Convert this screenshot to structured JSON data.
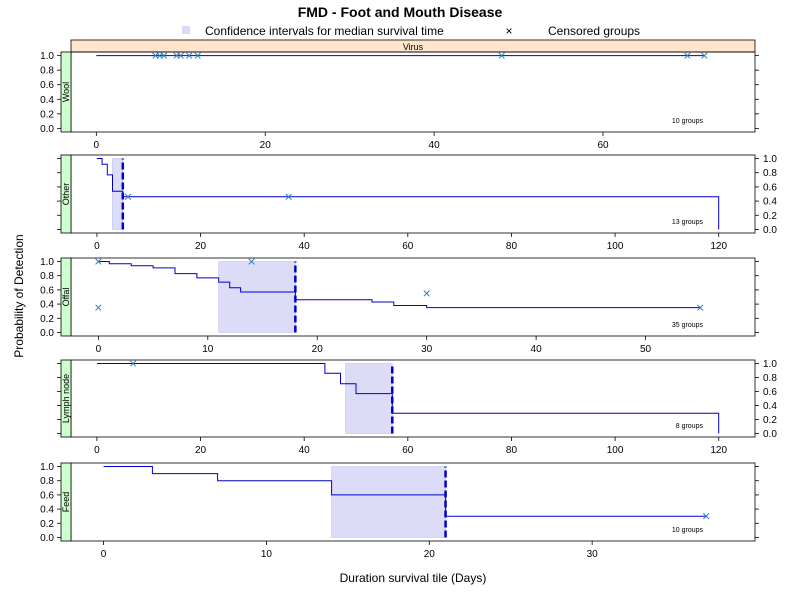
{
  "title": "FMD - Foot and Mouth Disease",
  "legend": {
    "ci_label": "Confidence intervals for median survival time",
    "censor_label": "Censored groups",
    "ci_color": "#dcdcf8",
    "curve_color": "#0000cc",
    "censor_color": "#2f7fc0",
    "strip_virus_color": "#ffe5cc",
    "strip_panel_color": "#ccffcc"
  },
  "xlabel": "Duration survival tile (Days)",
  "ylabel": "Probability of Detection",
  "chart_data": [
    {
      "type": "line",
      "panel": "Wool",
      "header": "Virus",
      "groups_label": "10 groups",
      "xlim": [
        -3,
        78
      ],
      "xticks": [
        0,
        20,
        40,
        60
      ],
      "ylim": [
        -0.05,
        1.05
      ],
      "yticks": [
        0,
        0.2,
        0.4,
        0.6,
        0.8,
        1.0
      ],
      "ytick_labels": [
        "0.0",
        "0.2",
        "0.4",
        "0.6",
        "0.8",
        "1.0"
      ],
      "yaxis_side": "left",
      "xaxis_side": "bottom",
      "steps": [
        [
          0,
          1.0
        ],
        [
          72,
          1.0
        ]
      ],
      "censored": [
        [
          7,
          1.0
        ],
        [
          7.5,
          1.0
        ],
        [
          8,
          1.0
        ],
        [
          9.5,
          1.0
        ],
        [
          10,
          1.0
        ],
        [
          11,
          1.0
        ],
        [
          12,
          1.0
        ],
        [
          48,
          1.0
        ],
        [
          70,
          1.0
        ],
        [
          72,
          1.0
        ]
      ],
      "ci": null,
      "median": null
    },
    {
      "type": "line",
      "panel": "Other",
      "groups_label": "13 groups",
      "xlim": [
        -5,
        127
      ],
      "xticks": [
        0,
        20,
        40,
        60,
        80,
        100,
        120
      ],
      "ylim": [
        -0.05,
        1.05
      ],
      "yticks": [
        0,
        0.2,
        0.4,
        0.6,
        0.8,
        1.0
      ],
      "ytick_labels": [
        "0.0",
        "0.2",
        "0.4",
        "0.6",
        "0.8",
        "1.0"
      ],
      "yaxis_side": "right",
      "xaxis_side": "bottom",
      "steps": [
        [
          0,
          1.0
        ],
        [
          1,
          1.0
        ],
        [
          1,
          0.92
        ],
        [
          2,
          0.92
        ],
        [
          2,
          0.77
        ],
        [
          3,
          0.77
        ],
        [
          3,
          0.54
        ],
        [
          5,
          0.54
        ],
        [
          5,
          0.46
        ],
        [
          120,
          0.46
        ],
        [
          120,
          0.0
        ]
      ],
      "censored": [
        [
          6,
          0.46
        ],
        [
          37,
          0.46
        ]
      ],
      "ci": [
        3,
        5
      ],
      "median": 5
    },
    {
      "type": "line",
      "panel": "Offal",
      "groups_label": "35 groups",
      "xlim": [
        -2.5,
        60
      ],
      "xticks": [
        0,
        10,
        20,
        30,
        40,
        50
      ],
      "ylim": [
        -0.05,
        1.05
      ],
      "yticks": [
        0,
        0.2,
        0.4,
        0.6,
        0.8,
        1.0
      ],
      "ytick_labels": [
        "0.0",
        "0.2",
        "0.4",
        "0.6",
        "0.8",
        "1.0"
      ],
      "yaxis_side": "left",
      "xaxis_side": "bottom",
      "steps": [
        [
          0,
          1.0
        ],
        [
          1,
          1.0
        ],
        [
          1,
          0.97
        ],
        [
          3,
          0.97
        ],
        [
          3,
          0.94
        ],
        [
          5,
          0.94
        ],
        [
          5,
          0.91
        ],
        [
          7,
          0.91
        ],
        [
          7,
          0.83
        ],
        [
          9,
          0.83
        ],
        [
          9,
          0.77
        ],
        [
          11,
          0.77
        ],
        [
          11,
          0.71
        ],
        [
          12,
          0.71
        ],
        [
          12,
          0.63
        ],
        [
          13,
          0.63
        ],
        [
          13,
          0.57
        ],
        [
          18,
          0.57
        ],
        [
          18,
          0.46
        ],
        [
          25,
          0.46
        ],
        [
          25,
          0.43
        ],
        [
          27,
          0.43
        ],
        [
          27,
          0.38
        ],
        [
          30,
          0.38
        ],
        [
          30,
          0.35
        ],
        [
          55,
          0.35
        ]
      ],
      "censored": [
        [
          0,
          1.0
        ],
        [
          0,
          0.35
        ],
        [
          14,
          1.0
        ],
        [
          30,
          0.55
        ],
        [
          55,
          0.35
        ]
      ],
      "ci": [
        11,
        18
      ],
      "median": 18
    },
    {
      "type": "line",
      "panel": "Lymph node",
      "groups_label": "8 groups",
      "xlim": [
        -5,
        127
      ],
      "xticks": [
        0,
        20,
        40,
        60,
        80,
        100,
        120
      ],
      "ylim": [
        -0.05,
        1.05
      ],
      "yticks": [
        0,
        0.2,
        0.4,
        0.6,
        0.8,
        1.0
      ],
      "ytick_labels": [
        "0.0",
        "0.2",
        "0.4",
        "0.6",
        "0.8",
        "1.0"
      ],
      "yaxis_side": "right",
      "xaxis_side": "bottom",
      "steps": [
        [
          0,
          1.0
        ],
        [
          44,
          1.0
        ],
        [
          44,
          0.86
        ],
        [
          47,
          0.86
        ],
        [
          47,
          0.71
        ],
        [
          50,
          0.71
        ],
        [
          50,
          0.57
        ],
        [
          57,
          0.57
        ],
        [
          57,
          0.29
        ],
        [
          120,
          0.29
        ],
        [
          120,
          0.0
        ]
      ],
      "censored": [
        [
          7,
          1.0
        ]
      ],
      "ci": [
        48,
        57
      ],
      "median": 57
    },
    {
      "type": "line",
      "panel": "Feed",
      "groups_label": "10 groups",
      "xlim": [
        -2,
        40
      ],
      "xticks": [
        0,
        10,
        20,
        30
      ],
      "ylim": [
        -0.05,
        1.05
      ],
      "yticks": [
        0,
        0.2,
        0.4,
        0.6,
        0.8,
        1.0
      ],
      "ytick_labels": [
        "0.0",
        "0.2",
        "0.4",
        "0.6",
        "0.8",
        "1.0"
      ],
      "yaxis_side": "left",
      "xaxis_side": "bottom",
      "steps": [
        [
          0,
          1.0
        ],
        [
          3,
          1.0
        ],
        [
          3,
          0.9
        ],
        [
          7,
          0.9
        ],
        [
          7,
          0.8
        ],
        [
          14,
          0.8
        ],
        [
          14,
          0.6
        ],
        [
          21,
          0.6
        ],
        [
          21,
          0.3
        ],
        [
          37,
          0.3
        ]
      ],
      "censored": [
        [
          37,
          0.3
        ]
      ],
      "ci": [
        14,
        21
      ],
      "median": 21
    }
  ]
}
